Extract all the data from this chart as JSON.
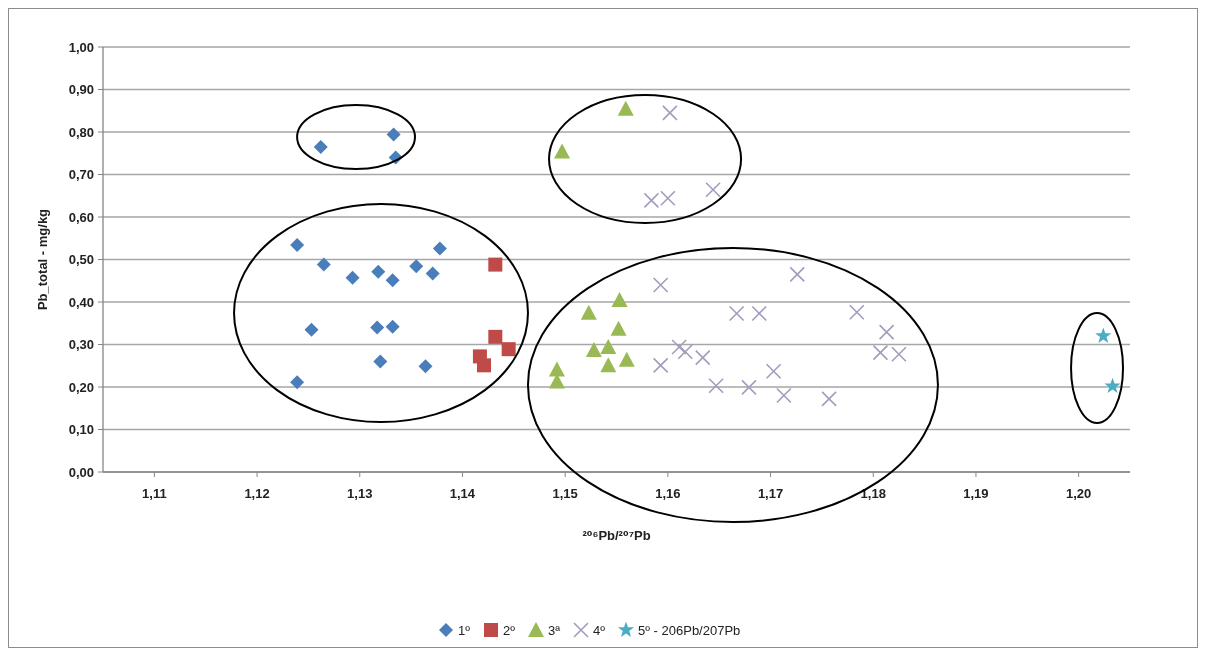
{
  "chart_data": {
    "type": "scatter",
    "xlabel": "²⁰⁶Pb/²⁰⁷Pb",
    "ylabel": "Pb_total - mg/kg",
    "xlim": [
      1.105,
      1.205
    ],
    "ylim": [
      0,
      1
    ],
    "xticks": [
      {
        "value": 1.11,
        "label": "1,11"
      },
      {
        "value": 1.12,
        "label": "1,12"
      },
      {
        "value": 1.13,
        "label": "1,13"
      },
      {
        "value": 1.14,
        "label": "1,14"
      },
      {
        "value": 1.15,
        "label": "1,15"
      },
      {
        "value": 1.16,
        "label": "1,16"
      },
      {
        "value": 1.17,
        "label": "1,17"
      },
      {
        "value": 1.18,
        "label": "1,18"
      },
      {
        "value": 1.19,
        "label": "1,19"
      },
      {
        "value": 1.2,
        "label": "1,20"
      }
    ],
    "yticks": [
      {
        "value": 0,
        "label": "0,00"
      },
      {
        "value": 0.1,
        "label": "0,10"
      },
      {
        "value": 0.2,
        "label": "0,20"
      },
      {
        "value": 0.3,
        "label": "0,30"
      },
      {
        "value": 0.4,
        "label": "0,40"
      },
      {
        "value": 0.5,
        "label": "0,50"
      },
      {
        "value": 0.6,
        "label": "0,60"
      },
      {
        "value": 0.7,
        "label": "0,70"
      },
      {
        "value": 0.8,
        "label": "0,80"
      },
      {
        "value": 0.9,
        "label": "0,90"
      },
      {
        "value": 1,
        "label": "1,00"
      }
    ],
    "grid": "y",
    "legend": "bottom",
    "series": [
      {
        "name": "1º",
        "color": "#4a7ebb",
        "marker": "diamond",
        "x": [
          1.1262,
          1.1333,
          1.1335,
          1.1239,
          1.1265,
          1.1293,
          1.1318,
          1.1332,
          1.1355,
          1.1371,
          1.1378,
          1.1253,
          1.1317,
          1.1332,
          1.132,
          1.1364,
          1.1239
        ],
        "values": [
          0.765,
          0.794,
          0.74,
          0.534,
          0.488,
          0.457,
          0.471,
          0.451,
          0.484,
          0.467,
          0.526,
          0.335,
          0.34,
          0.342,
          0.26,
          0.249,
          0.211
        ]
      },
      {
        "name": "2º",
        "color": "#be4b48",
        "marker": "square",
        "x": [
          1.1432,
          1.1432,
          1.1445,
          1.1417,
          1.1421
        ],
        "values": [
          0.488,
          0.318,
          0.289,
          0.272,
          0.251
        ]
      },
      {
        "name": "3ª",
        "color": "#98b954",
        "marker": "triangle",
        "x": [
          1.1559,
          1.1497,
          1.1553,
          1.1523,
          1.1552,
          1.1528,
          1.1542,
          1.156,
          1.1542,
          1.1492,
          1.1492
        ],
        "values": [
          0.855,
          0.754,
          0.405,
          0.375,
          0.337,
          0.287,
          0.294,
          0.264,
          0.251,
          0.241,
          0.213
        ]
      },
      {
        "name": "4º",
        "color": "#a49bbd",
        "marker": "cross",
        "x": [
          1.1602,
          1.1584,
          1.16,
          1.1644,
          1.1593,
          1.1726,
          1.1667,
          1.1689,
          1.1784,
          1.1813,
          1.1807,
          1.1825,
          1.1611,
          1.1617,
          1.1634,
          1.1593,
          1.1703,
          1.1647,
          1.1679,
          1.1713,
          1.1757
        ],
        "values": [
          0.845,
          0.639,
          0.644,
          0.664,
          0.44,
          0.465,
          0.373,
          0.373,
          0.376,
          0.329,
          0.281,
          0.277,
          0.294,
          0.283,
          0.269,
          0.251,
          0.237,
          0.203,
          0.199,
          0.18,
          0.172
        ]
      },
      {
        "name": "5º - 206Pb/207Pb",
        "color": "#4bacc6",
        "marker": "star",
        "x": [
          1.2024,
          1.2033
        ],
        "values": [
          0.32,
          0.202
        ]
      }
    ]
  }
}
